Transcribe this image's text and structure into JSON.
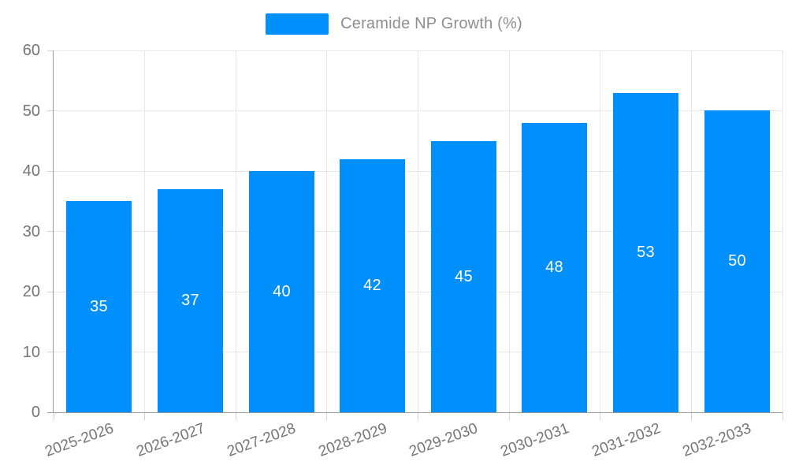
{
  "legend": {
    "label": "Ceramide NP Growth (%)"
  },
  "chart_data": {
    "type": "bar",
    "title": "",
    "xlabel": "",
    "ylabel": "",
    "categories": [
      "2025-2026",
      "2026-2027",
      "2027-2028",
      "2028-2029",
      "2029-2030",
      "2030-2031",
      "2031-2032",
      "2032-2033"
    ],
    "series": [
      {
        "name": "Ceramide NP Growth (%)",
        "values": [
          35,
          37,
          40,
          42,
          45,
          48,
          53,
          50
        ]
      }
    ],
    "ylim": [
      0,
      60
    ],
    "yticks": [
      0,
      10,
      20,
      30,
      40,
      50,
      60
    ],
    "grid": true,
    "legend_position": "top",
    "value_labels": "inside-center"
  },
  "theme": {
    "bar_color": "#008FFB",
    "background": "#ffffff",
    "axis_line_color": "#9a9a9a",
    "gridline_color": "#e7e7e7",
    "tick_mark_color": "#d2d2d2",
    "tick_label_color": "#757575",
    "legend_text_color": "#8e8e8e",
    "value_label_color": "#ffffff"
  }
}
